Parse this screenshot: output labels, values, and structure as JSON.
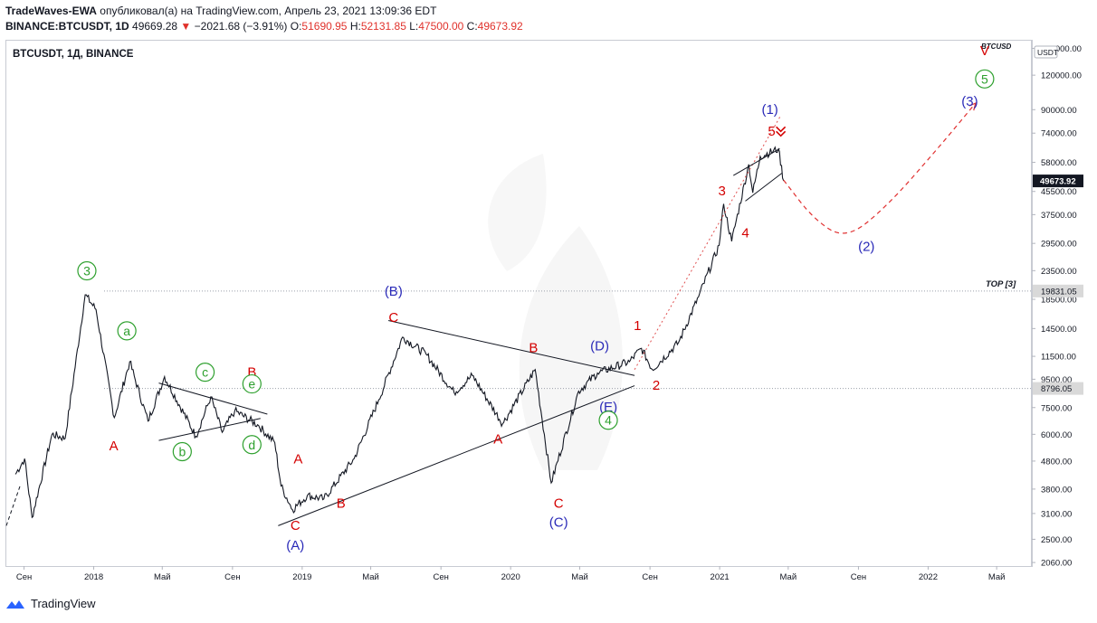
{
  "header": {
    "author": "TradeWaves-EWA",
    "published_text": "опубликовал(а) на TradingView.com, Апрель 23, 2021 13:09:36 EDT",
    "symbol_line": "BINANCE:BTCUSDT, 1D",
    "last": "49669.28",
    "change": "−2021.68 (−3.91%)",
    "o_label": "O:",
    "o": "51690.95",
    "h_label": "H:",
    "h": "52131.85",
    "l_label": "L:",
    "l": "47500.00",
    "c_label": "C:",
    "c": "49673.92"
  },
  "panel_title": "BTCUSDT, 1Д, BINANCE",
  "footer": {
    "brand": "TradingView"
  },
  "colors": {
    "green": "#2ea02e",
    "red": "#d40000",
    "blue": "#2a2ab8",
    "price_badge": "#131722",
    "level_badge": "#d9d9d9"
  },
  "chart_data": {
    "type": "line",
    "y_scale": "log",
    "ylim": [
      2000,
      160000
    ],
    "xlim": [
      "2017-08-01",
      "2022-06-30"
    ],
    "axis_unit_label": "USDT",
    "axis_tag": "BTCUSD",
    "y_ticks": [
      150000,
      120000,
      90000,
      74000,
      58000,
      45500,
      37500,
      29500,
      23500,
      18500,
      14500,
      11500,
      9500,
      7500,
      6000,
      4800,
      3800,
      3100,
      2500,
      2060
    ],
    "y_tick_labels": [
      "150000.00",
      "120000.00",
      "90000.00",
      "74000.00",
      "58000.00",
      "45500.00",
      "37500.00",
      "29500.00",
      "23500.00",
      "18500.00",
      "14500.00",
      "11500.00",
      "9500.00",
      "7500.00",
      "6000.00",
      "4800.00",
      "3800.00",
      "3100.00",
      "2500.00",
      "2060.00"
    ],
    "x_ticks": [
      "2017-09-01",
      "2018-01-01",
      "2018-05-01",
      "2018-09-01",
      "2019-01-01",
      "2019-05-01",
      "2019-09-01",
      "2020-01-01",
      "2020-05-01",
      "2020-09-01",
      "2021-01-01",
      "2021-05-01",
      "2021-09-01",
      "2022-01-01",
      "2022-05-01"
    ],
    "x_tick_labels": [
      "Сен",
      "2018",
      "Май",
      "Сен",
      "2019",
      "Май",
      "Сен",
      "2020",
      "Май",
      "Сен",
      "2021",
      "Май",
      "Сен",
      "2022",
      "Май"
    ],
    "price_series": {
      "name": "BTCUSDT",
      "x": [
        "2017-08-17",
        "2017-09-02",
        "2017-09-15",
        "2017-10-20",
        "2017-11-12",
        "2017-12-17",
        "2018-01-05",
        "2018-02-06",
        "2018-03-05",
        "2018-04-06",
        "2018-05-05",
        "2018-06-29",
        "2018-07-25",
        "2018-08-14",
        "2018-09-05",
        "2018-10-15",
        "2018-11-14",
        "2018-11-25",
        "2018-12-15",
        "2019-01-10",
        "2019-02-08",
        "2019-04-02",
        "2019-05-15",
        "2019-06-26",
        "2019-08-06",
        "2019-09-24",
        "2019-10-26",
        "2019-12-18",
        "2020-02-13",
        "2020-03-12",
        "2020-04-29",
        "2020-06-01",
        "2020-07-27",
        "2020-08-17",
        "2020-09-05",
        "2020-10-21",
        "2020-11-25",
        "2020-12-31",
        "2021-01-08",
        "2021-01-22",
        "2021-02-21",
        "2021-02-28",
        "2021-03-13",
        "2021-04-14",
        "2021-04-23"
      ],
      "y": [
        4300,
        4900,
        3000,
        6000,
        5800,
        19200,
        17000,
        6900,
        11000,
        6700,
        9700,
        5900,
        8200,
        6100,
        7300,
        6500,
        5600,
        3900,
        3200,
        3600,
        3500,
        4900,
        8000,
        13500,
        11700,
        8500,
        9800,
        6550,
        10300,
        4000,
        8600,
        10000,
        11000,
        12300,
        10300,
        12900,
        18900,
        29000,
        41000,
        30000,
        57000,
        45000,
        61000,
        64800,
        49673.92
      ]
    },
    "forecast": {
      "x": [
        "2021-04-23",
        "2021-06-15",
        "2021-08-10",
        "2021-10-20",
        "2022-01-15",
        "2022-03-25"
      ],
      "y": [
        50000,
        36000,
        30500,
        40000,
        64000,
        95000
      ]
    },
    "lead_in": {
      "x": [
        "2017-08-01",
        "2017-08-25"
      ],
      "y": [
        2800,
        3900
      ]
    },
    "levels": [
      {
        "name": "TOP [3]",
        "value": 19831.05,
        "badge": "19831.05"
      },
      {
        "name": "",
        "value": 8796.05,
        "badge": "8796.05"
      }
    ],
    "last_price_badge": "49673.92",
    "trendlines": [
      {
        "x": [
          "2018-11-20",
          "2020-08-05"
        ],
        "y": [
          2800,
          9000
        ],
        "style": "solid"
      },
      {
        "x": [
          "2019-06-01",
          "2020-08-05"
        ],
        "y": [
          15500,
          9800
        ],
        "style": "solid"
      },
      {
        "x": [
          "2018-04-25",
          "2018-11-01"
        ],
        "y": [
          9200,
          7100
        ],
        "style": "solid"
      },
      {
        "x": [
          "2018-04-25",
          "2018-10-20"
        ],
        "y": [
          5700,
          6850
        ],
        "style": "solid"
      },
      {
        "x": [
          "2020-08-05",
          "2021-04-17"
        ],
        "y": [
          10300,
          85000
        ],
        "style": "dotted"
      },
      {
        "x": [
          "2021-01-25",
          "2021-04-16"
        ],
        "y": [
          52000,
          65000
        ],
        "style": "solid"
      },
      {
        "x": [
          "2021-02-15",
          "2021-04-20"
        ],
        "y": [
          42000,
          53000
        ],
        "style": "solid"
      }
    ],
    "wave_labels": [
      {
        "text": "3",
        "x": "2017-12-20",
        "y": 22600,
        "color": "green",
        "circled": true
      },
      {
        "text": "a",
        "x": "2018-02-28",
        "y": 13700,
        "color": "green",
        "circled": true
      },
      {
        "text": "A",
        "x": "2018-02-05",
        "y": 5250,
        "color": "red",
        "circled": false
      },
      {
        "text": "b",
        "x": "2018-06-05",
        "y": 5000,
        "color": "green",
        "circled": true
      },
      {
        "text": "c",
        "x": "2018-07-15",
        "y": 9700,
        "color": "green",
        "circled": true
      },
      {
        "text": "d",
        "x": "2018-10-05",
        "y": 5300,
        "color": "green",
        "circled": true
      },
      {
        "text": "B",
        "x": "2018-10-05",
        "y": 9700,
        "color": "red",
        "circled": false
      },
      {
        "text": "e",
        "x": "2018-10-05",
        "y": 8800,
        "color": "green",
        "circled": true
      },
      {
        "text": "A",
        "x": "2018-12-25",
        "y": 4700,
        "color": "red",
        "circled": false
      },
      {
        "text": "C",
        "x": "2018-12-20",
        "y": 2700,
        "color": "red",
        "circled": false
      },
      {
        "text": "(A)",
        "x": "2018-12-20",
        "y": 2290,
        "color": "blue",
        "circled": false
      },
      {
        "text": "B",
        "x": "2019-03-10",
        "y": 3250,
        "color": "red",
        "circled": false
      },
      {
        "text": "(B)",
        "x": "2019-06-10",
        "y": 19100,
        "color": "blue",
        "circled": false
      },
      {
        "text": "C",
        "x": "2019-06-10",
        "y": 15300,
        "color": "red",
        "circled": false
      },
      {
        "text": "A",
        "x": "2019-12-10",
        "y": 5550,
        "color": "red",
        "circled": false
      },
      {
        "text": "B",
        "x": "2020-02-10",
        "y": 11900,
        "color": "red",
        "circled": false
      },
      {
        "text": "C",
        "x": "2020-03-25",
        "y": 3250,
        "color": "red",
        "circled": false
      },
      {
        "text": "(C)",
        "x": "2020-03-25",
        "y": 2780,
        "color": "blue",
        "circled": false
      },
      {
        "text": "(D)",
        "x": "2020-06-05",
        "y": 12100,
        "color": "blue",
        "circled": false
      },
      {
        "text": "(E)",
        "x": "2020-06-20",
        "y": 7250,
        "color": "blue",
        "circled": false
      },
      {
        "text": "4",
        "x": "2020-06-20",
        "y": 6500,
        "color": "green",
        "circled": true
      },
      {
        "text": "1",
        "x": "2020-08-10",
        "y": 14300,
        "color": "red",
        "circled": false
      },
      {
        "text": "2",
        "x": "2020-09-12",
        "y": 8700,
        "color": "red",
        "circled": false
      },
      {
        "text": "3",
        "x": "2021-01-05",
        "y": 44000,
        "color": "red",
        "circled": false
      },
      {
        "text": "4",
        "x": "2021-02-15",
        "y": 31000,
        "color": "red",
        "circled": false
      },
      {
        "text": "(1)",
        "x": "2021-03-30",
        "y": 87000,
        "color": "blue",
        "circled": false
      },
      {
        "text": "5",
        "x": "2021-04-02",
        "y": 72500,
        "color": "red",
        "circled": false
      },
      {
        "text": "(2)",
        "x": "2021-09-15",
        "y": 27700,
        "color": "blue",
        "circled": false
      },
      {
        "text": "(3)",
        "x": "2022-03-15",
        "y": 93000,
        "color": "blue",
        "circled": false
      },
      {
        "text": "5",
        "x": "2022-04-10",
        "y": 112000,
        "color": "green",
        "circled": true
      },
      {
        "text": "V",
        "x": "2022-04-10",
        "y": 142000,
        "color": "red",
        "circled": false
      }
    ],
    "level_label": "TOP [3]"
  }
}
